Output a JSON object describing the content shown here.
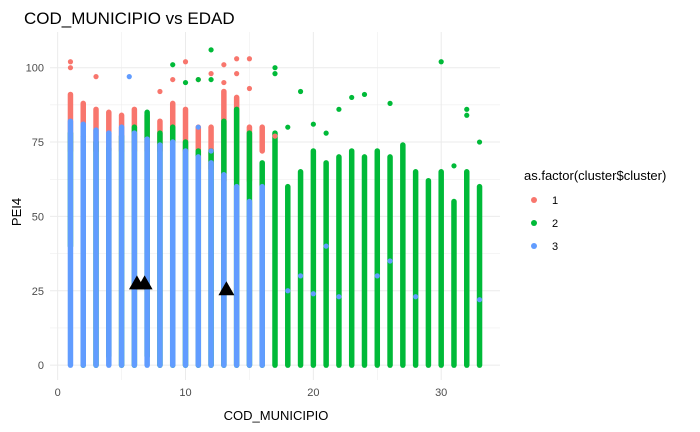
{
  "chart_data": {
    "type": "scatter",
    "title": "COD_MUNICIPIO vs EDAD",
    "xlabel": "COD_MUNICIPIO",
    "ylabel": "PEI4",
    "xlim": [
      -0.6,
      34.6
    ],
    "ylim": [
      -5,
      112
    ],
    "x_ticks": [
      0,
      10,
      20,
      30
    ],
    "x_tick_labels": [
      "0",
      "10",
      "20",
      "30"
    ],
    "y_ticks": [
      0,
      25,
      50,
      75,
      100
    ],
    "y_tick_labels": [
      "0",
      "25",
      "50",
      "75",
      "100"
    ],
    "grid": true,
    "legend": {
      "title": "as.factor(cluster$cluster)",
      "placement": "right"
    },
    "series": [
      {
        "name": "1",
        "color": "#F8766D",
        "ranges": [
          {
            "x": 1,
            "ymin": 72,
            "ymax": 91
          },
          {
            "x": 2,
            "ymin": 72,
            "ymax": 88
          },
          {
            "x": 3,
            "ymin": 72,
            "ymax": 86
          },
          {
            "x": 4,
            "ymin": 72,
            "ymax": 85
          },
          {
            "x": 5,
            "ymin": 72,
            "ymax": 84
          },
          {
            "x": 6,
            "ymin": 72,
            "ymax": 86
          },
          {
            "x": 7,
            "ymin": 72,
            "ymax": 84
          },
          {
            "x": 8,
            "ymin": 72,
            "ymax": 82
          },
          {
            "x": 9,
            "ymin": 72,
            "ymax": 88
          },
          {
            "x": 10,
            "ymin": 72,
            "ymax": 86
          },
          {
            "x": 11,
            "ymin": 66,
            "ymax": 80
          },
          {
            "x": 12,
            "ymin": 66,
            "ymax": 80
          },
          {
            "x": 13,
            "ymin": 62,
            "ymax": 92
          },
          {
            "x": 14,
            "ymin": 62,
            "ymax": 90
          },
          {
            "x": 15,
            "ymin": 62,
            "ymax": 80
          },
          {
            "x": 16,
            "ymin": 72,
            "ymax": 80
          }
        ],
        "points": [
          {
            "x": 1,
            "y": 102
          },
          {
            "x": 1,
            "y": 100
          },
          {
            "x": 3,
            "y": 97
          },
          {
            "x": 8,
            "y": 92
          },
          {
            "x": 9,
            "y": 96
          },
          {
            "x": 10,
            "y": 102
          },
          {
            "x": 11,
            "y": 96
          },
          {
            "x": 12,
            "y": 98
          },
          {
            "x": 13,
            "y": 101
          },
          {
            "x": 14,
            "y": 98
          },
          {
            "x": 14,
            "y": 103
          },
          {
            "x": 15,
            "y": 103
          },
          {
            "x": 13,
            "y": 95
          },
          {
            "x": 15,
            "y": 93
          },
          {
            "x": 17,
            "y": 77
          }
        ]
      },
      {
        "name": "2",
        "color": "#00BA38",
        "ranges": [
          {
            "x": 1,
            "ymin": 40,
            "ymax": 78
          },
          {
            "x": 2,
            "ymin": 0,
            "ymax": 77
          },
          {
            "x": 3,
            "ymin": 0,
            "ymax": 75
          },
          {
            "x": 4,
            "ymin": 3,
            "ymax": 73
          },
          {
            "x": 5,
            "ymin": 0,
            "ymax": 77
          },
          {
            "x": 6,
            "ymin": 0,
            "ymax": 80
          },
          {
            "x": 7,
            "ymin": 3,
            "ymax": 85
          },
          {
            "x": 8,
            "ymin": 0,
            "ymax": 78
          },
          {
            "x": 9,
            "ymin": 0,
            "ymax": 80
          },
          {
            "x": 10,
            "ymin": 0,
            "ymax": 75
          },
          {
            "x": 11,
            "ymin": 0,
            "ymax": 72
          },
          {
            "x": 12,
            "ymin": 0,
            "ymax": 72
          },
          {
            "x": 13,
            "ymin": 0,
            "ymax": 82
          },
          {
            "x": 14,
            "ymin": 0,
            "ymax": 86
          },
          {
            "x": 15,
            "ymin": 0,
            "ymax": 78
          },
          {
            "x": 16,
            "ymin": 0,
            "ymax": 68
          },
          {
            "x": 17,
            "ymin": 0,
            "ymax": 78
          },
          {
            "x": 18,
            "ymin": 0,
            "ymax": 60
          },
          {
            "x": 19,
            "ymin": 0,
            "ymax": 65
          },
          {
            "x": 20,
            "ymin": 0,
            "ymax": 72
          },
          {
            "x": 21,
            "ymin": 0,
            "ymax": 68
          },
          {
            "x": 22,
            "ymin": 0,
            "ymax": 70
          },
          {
            "x": 23,
            "ymin": 0,
            "ymax": 72
          },
          {
            "x": 24,
            "ymin": 0,
            "ymax": 70
          },
          {
            "x": 25,
            "ymin": 0,
            "ymax": 72
          },
          {
            "x": 26,
            "ymin": 0,
            "ymax": 70
          },
          {
            "x": 27,
            "ymin": 0,
            "ymax": 74
          },
          {
            "x": 28,
            "ymin": 0,
            "ymax": 65
          },
          {
            "x": 29,
            "ymin": 0,
            "ymax": 62
          },
          {
            "x": 30,
            "ymin": 0,
            "ymax": 65
          },
          {
            "x": 31,
            "ymin": 0,
            "ymax": 55
          },
          {
            "x": 32,
            "ymin": 0,
            "ymax": 65
          },
          {
            "x": 33,
            "ymin": 0,
            "ymax": 60
          }
        ],
        "points": [
          {
            "x": 17,
            "y": 100
          },
          {
            "x": 17,
            "y": 98
          },
          {
            "x": 19,
            "y": 92
          },
          {
            "x": 22,
            "y": 86
          },
          {
            "x": 24,
            "y": 91
          },
          {
            "x": 26,
            "y": 88
          },
          {
            "x": 30,
            "y": 102
          },
          {
            "x": 32,
            "y": 86
          },
          {
            "x": 32,
            "y": 84
          },
          {
            "x": 33,
            "y": 75
          },
          {
            "x": 31,
            "y": 67
          },
          {
            "x": 20,
            "y": 81
          },
          {
            "x": 23,
            "y": 90
          },
          {
            "x": 12,
            "y": 96
          },
          {
            "x": 12,
            "y": 106
          },
          {
            "x": 9,
            "y": 101
          },
          {
            "x": 18,
            "y": 80
          },
          {
            "x": 21,
            "y": 78
          },
          {
            "x": 11,
            "y": 96
          },
          {
            "x": 10,
            "y": 95
          }
        ]
      },
      {
        "name": "3",
        "color": "#619CFF",
        "ranges": [
          {
            "x": 1,
            "ymin": 0,
            "ymax": 82
          },
          {
            "x": 2,
            "ymin": 0,
            "ymax": 81
          },
          {
            "x": 3,
            "ymin": 0,
            "ymax": 79
          },
          {
            "x": 4,
            "ymin": 0,
            "ymax": 78
          },
          {
            "x": 5,
            "ymin": 0,
            "ymax": 80
          },
          {
            "x": 6,
            "ymin": 0,
            "ymax": 78
          },
          {
            "x": 7,
            "ymin": 0,
            "ymax": 76
          },
          {
            "x": 8,
            "ymin": 0,
            "ymax": 74
          },
          {
            "x": 9,
            "ymin": 0,
            "ymax": 75
          },
          {
            "x": 10,
            "ymin": 0,
            "ymax": 72
          },
          {
            "x": 11,
            "ymin": 0,
            "ymax": 70
          },
          {
            "x": 12,
            "ymin": 0,
            "ymax": 68
          },
          {
            "x": 13,
            "ymin": 0,
            "ymax": 64
          },
          {
            "x": 14,
            "ymin": 0,
            "ymax": 60
          },
          {
            "x": 15,
            "ymin": 0,
            "ymax": 55
          },
          {
            "x": 16,
            "ymin": 0,
            "ymax": 60
          }
        ],
        "points": [
          {
            "x": 5.6,
            "y": 97
          },
          {
            "x": 11,
            "y": 80
          },
          {
            "x": 12,
            "y": 72
          },
          {
            "x": 20,
            "y": 24
          },
          {
            "x": 22,
            "y": 23
          },
          {
            "x": 25,
            "y": 30
          },
          {
            "x": 26,
            "y": 35
          },
          {
            "x": 28,
            "y": 23
          },
          {
            "x": 33,
            "y": 22
          },
          {
            "x": 18,
            "y": 25
          },
          {
            "x": 19,
            "y": 30
          },
          {
            "x": 21,
            "y": 40
          }
        ]
      }
    ],
    "markers": [
      {
        "x": 6.2,
        "y": 27.5,
        "shape": "triangle",
        "color": "#000000"
      },
      {
        "x": 6.8,
        "y": 27.5,
        "shape": "triangle",
        "color": "#000000"
      },
      {
        "x": 13.2,
        "y": 25.5,
        "shape": "triangle",
        "color": "#000000"
      }
    ]
  }
}
